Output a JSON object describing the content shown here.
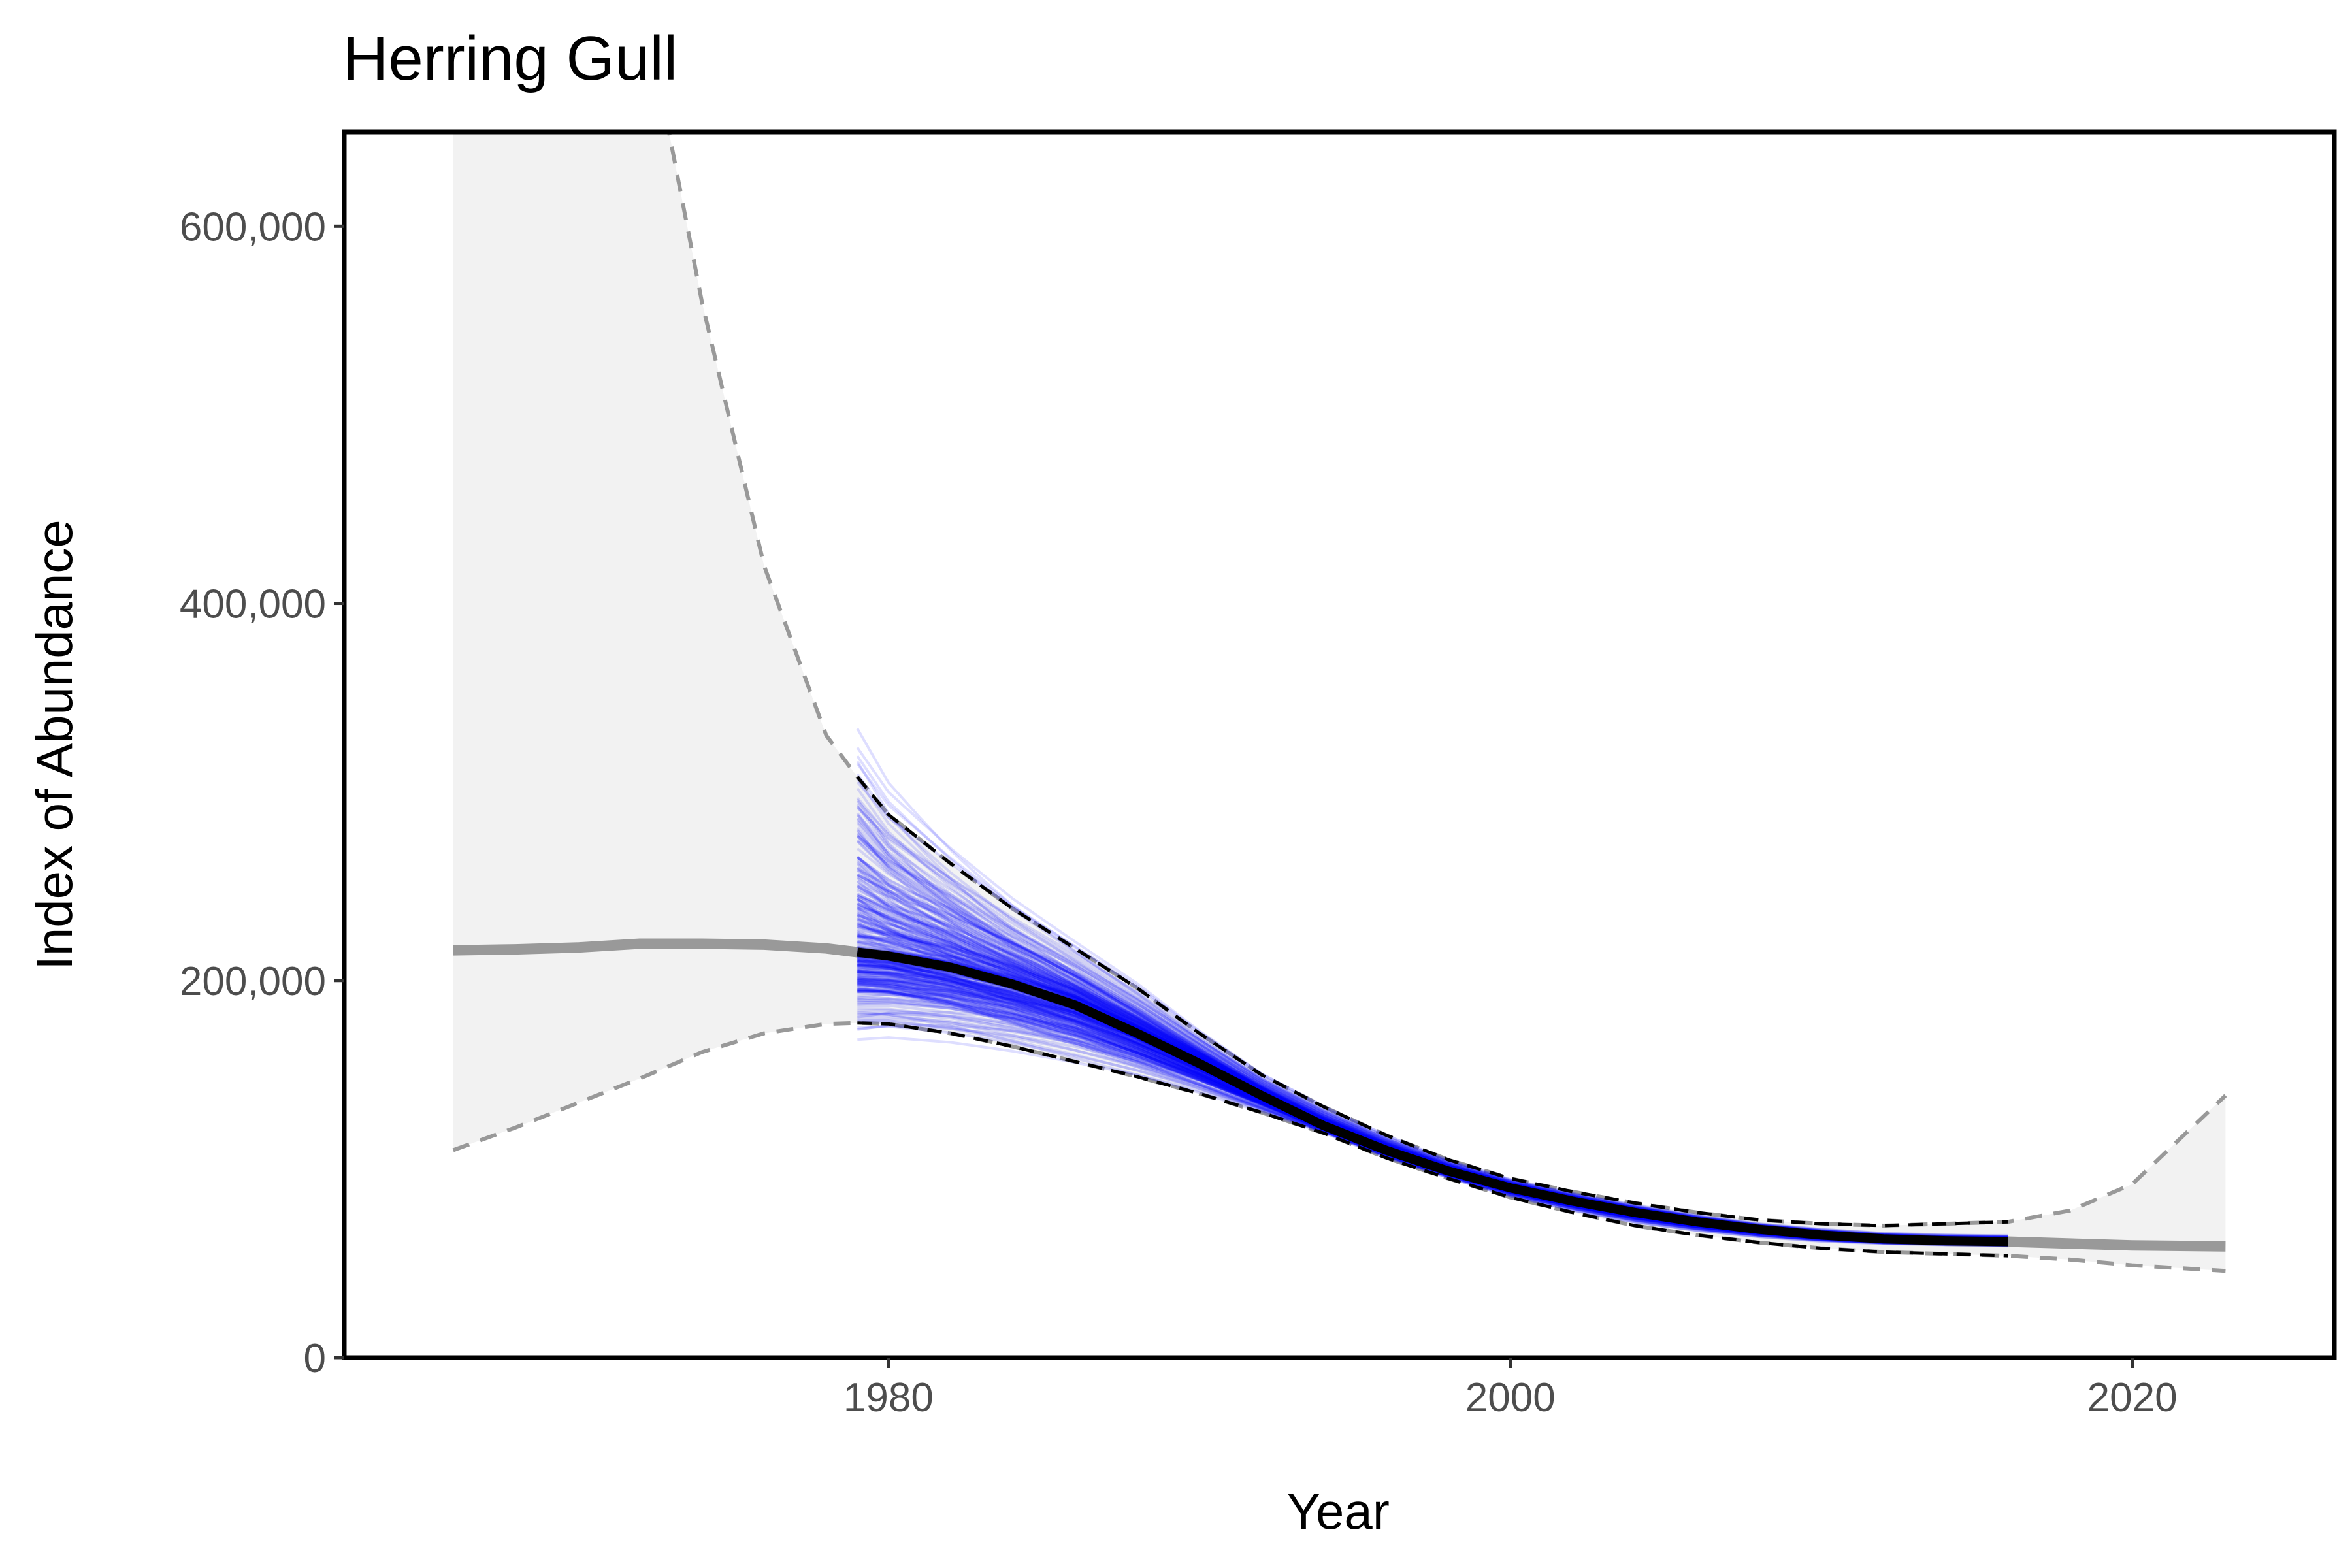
{
  "chart_data": {
    "type": "line",
    "title": "Herring Gull",
    "xlabel": "Year",
    "ylabel": "Index of Abundance",
    "xlim": [
      1962.5,
      2026.5
    ],
    "ylim": [
      0,
      650000
    ],
    "x_ticks": [
      1980,
      2000,
      2020
    ],
    "x_tick_labels": [
      "1980",
      "2000",
      "2020"
    ],
    "y_ticks": [
      0,
      200000,
      400000,
      600000
    ],
    "y_tick_labels": [
      "0",
      "200,000",
      "400,000",
      "600,000"
    ],
    "grid": false,
    "legend": "none",
    "colors": {
      "full_series": "#999999",
      "full_band": "#f2f2f2",
      "posterior_draws": "#0000ff",
      "focal_trend": "#000000"
    },
    "series": [
      {
        "name": "full-period smooth (grey)",
        "x": [
          1966,
          1968,
          1970,
          1972,
          1974,
          1976,
          1978,
          1979,
          1980,
          1982,
          1984,
          1986,
          1988,
          1990,
          1992,
          1994,
          1996,
          1998,
          2000,
          2002,
          2004,
          2006,
          2008,
          2010,
          2012,
          2014,
          2016,
          2018,
          2020,
          2023
        ],
        "y": [
          216000,
          216500,
          217500,
          219500,
          219500,
          219000,
          217000,
          215000,
          213000,
          207000,
          198000,
          187000,
          172000,
          156000,
          139000,
          123000,
          110000,
          99000,
          90000,
          83000,
          77000,
          72000,
          68000,
          65000,
          63000,
          62000,
          61500,
          60500,
          59500,
          59000
        ],
        "lower": [
          110000,
          122000,
          135000,
          148000,
          162000,
          172000,
          177000,
          177500,
          177000,
          172000,
          165000,
          157000,
          149000,
          140000,
          130000,
          119000,
          106000,
          95000,
          85000,
          77000,
          70000,
          65000,
          61000,
          58000,
          56000,
          55000,
          54000,
          52000,
          49000,
          46000
        ],
        "upper": [
          2100000,
          1450000,
          1000000,
          730000,
          560000,
          420000,
          330000,
          308000,
          288000,
          262000,
          238000,
          217000,
          196000,
          172000,
          150000,
          133000,
          118000,
          105000,
          95000,
          88000,
          82000,
          77000,
          73000,
          71000,
          70000,
          71000,
          72000,
          78000,
          92000,
          139000
        ]
      },
      {
        "name": "focal-period trend (black)",
        "x": [
          1979,
          1980,
          1982,
          1984,
          1986,
          1988,
          1990,
          1992,
          1994,
          1996,
          1998,
          2000,
          2002,
          2004,
          2006,
          2008,
          2010,
          2012,
          2014,
          2016
        ],
        "y": [
          215000,
          213000,
          207000,
          198000,
          187000,
          172000,
          156000,
          139000,
          123000,
          110000,
          99000,
          90000,
          83000,
          77000,
          72000,
          68000,
          65000,
          63000,
          62000,
          61500
        ],
        "lower": [
          177500,
          177000,
          172000,
          165000,
          157000,
          149000,
          140000,
          130000,
          119000,
          106000,
          95000,
          85000,
          77000,
          70000,
          65000,
          61000,
          58000,
          56000,
          55000,
          54000
        ],
        "upper": [
          308000,
          288000,
          262000,
          238000,
          217000,
          196000,
          172000,
          150000,
          133000,
          118000,
          105000,
          95000,
          88000,
          82000,
          77000,
          73000,
          71000,
          70000,
          71000,
          72000
        ]
      }
    ],
    "posterior_draws": {
      "count": 300,
      "x_range": [
        1979,
        2016
      ],
      "start_range": [
        160000,
        392000
      ],
      "end_range": [
        55000,
        86000
      ]
    }
  }
}
